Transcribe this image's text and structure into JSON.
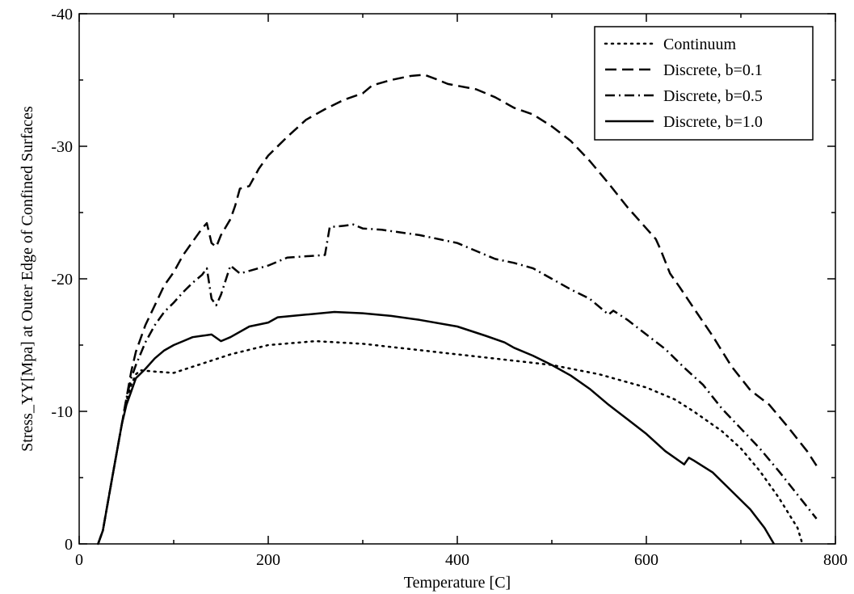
{
  "chart_data": {
    "type": "line",
    "xlabel": "Temperature [C]",
    "ylabel": "Stress_YY[Mpa] at Outer Edge of Confined Surfaces",
    "xlim": [
      0,
      800
    ],
    "ylim": [
      0,
      -40
    ],
    "y_axis_inverted": true,
    "x_ticks": [
      0,
      200,
      400,
      600,
      800
    ],
    "y_ticks": [
      0,
      -10,
      -20,
      -30,
      -40
    ],
    "x_tick_labels": [
      "0",
      "200",
      "400",
      "600",
      "800"
    ],
    "y_tick_labels": [
      "0",
      "-10",
      "-20",
      "-30",
      "-40"
    ],
    "grid": false,
    "legend_position": "top-right",
    "series": [
      {
        "name": "Continuum",
        "style": "dotted",
        "color": "#000000",
        "points": [
          [
            20,
            0
          ],
          [
            25,
            -1
          ],
          [
            30,
            -3
          ],
          [
            35,
            -5
          ],
          [
            40,
            -7
          ],
          [
            45,
            -9
          ],
          [
            50,
            -10.8
          ],
          [
            55,
            -12
          ],
          [
            60,
            -12.8
          ],
          [
            65,
            -13.1
          ],
          [
            80,
            -13
          ],
          [
            100,
            -12.9
          ],
          [
            130,
            -13.6
          ],
          [
            160,
            -14.3
          ],
          [
            200,
            -15
          ],
          [
            250,
            -15.3
          ],
          [
            300,
            -15.1
          ],
          [
            350,
            -14.7
          ],
          [
            400,
            -14.3
          ],
          [
            450,
            -13.9
          ],
          [
            500,
            -13.5
          ],
          [
            550,
            -12.8
          ],
          [
            600,
            -11.8
          ],
          [
            630,
            -10.9
          ],
          [
            650,
            -10
          ],
          [
            680,
            -8.5
          ],
          [
            700,
            -7.2
          ],
          [
            720,
            -5.5
          ],
          [
            740,
            -3.5
          ],
          [
            760,
            -1.2
          ],
          [
            765,
            0
          ]
        ]
      },
      {
        "name": "Discrete, b=0.1",
        "style": "dashed",
        "color": "#000000",
        "points": [
          [
            20,
            0
          ],
          [
            25,
            -1
          ],
          [
            30,
            -3
          ],
          [
            35,
            -5
          ],
          [
            40,
            -7
          ],
          [
            45,
            -9
          ],
          [
            50,
            -11
          ],
          [
            55,
            -13
          ],
          [
            60,
            -14.5
          ],
          [
            70,
            -16.5
          ],
          [
            80,
            -18
          ],
          [
            90,
            -19.5
          ],
          [
            100,
            -20.5
          ],
          [
            110,
            -21.8
          ],
          [
            120,
            -22.8
          ],
          [
            130,
            -23.8
          ],
          [
            135,
            -24.2
          ],
          [
            140,
            -22.7
          ],
          [
            145,
            -22.4
          ],
          [
            150,
            -23.3
          ],
          [
            160,
            -24.5
          ],
          [
            165,
            -25.5
          ],
          [
            170,
            -26.8
          ],
          [
            180,
            -27
          ],
          [
            190,
            -28.3
          ],
          [
            200,
            -29.3
          ],
          [
            220,
            -30.7
          ],
          [
            240,
            -32
          ],
          [
            260,
            -32.8
          ],
          [
            280,
            -33.5
          ],
          [
            300,
            -34
          ],
          [
            310,
            -34.6
          ],
          [
            330,
            -35
          ],
          [
            350,
            -35.3
          ],
          [
            365,
            -35.4
          ],
          [
            380,
            -35
          ],
          [
            390,
            -34.7
          ],
          [
            420,
            -34.3
          ],
          [
            440,
            -33.7
          ],
          [
            460,
            -32.9
          ],
          [
            480,
            -32.4
          ],
          [
            500,
            -31.5
          ],
          [
            520,
            -30.4
          ],
          [
            540,
            -28.9
          ],
          [
            560,
            -27.2
          ],
          [
            580,
            -25.4
          ],
          [
            600,
            -23.8
          ],
          [
            610,
            -23
          ],
          [
            615,
            -22.2
          ],
          [
            625,
            -20.4
          ],
          [
            635,
            -19.4
          ],
          [
            650,
            -17.8
          ],
          [
            670,
            -15.7
          ],
          [
            690,
            -13.4
          ],
          [
            710,
            -11.6
          ],
          [
            730,
            -10.5
          ],
          [
            750,
            -8.8
          ],
          [
            770,
            -7
          ],
          [
            780,
            -5.9
          ]
        ]
      },
      {
        "name": "Discrete, b=0.5",
        "style": "dashdot",
        "color": "#000000",
        "points": [
          [
            20,
            0
          ],
          [
            25,
            -1
          ],
          [
            30,
            -3
          ],
          [
            35,
            -5
          ],
          [
            40,
            -7
          ],
          [
            45,
            -9
          ],
          [
            50,
            -11
          ],
          [
            55,
            -12.5
          ],
          [
            60,
            -13.5
          ],
          [
            70,
            -15.2
          ],
          [
            80,
            -16.5
          ],
          [
            90,
            -17.5
          ],
          [
            100,
            -18.2
          ],
          [
            110,
            -19
          ],
          [
            120,
            -19.7
          ],
          [
            130,
            -20.3
          ],
          [
            135,
            -20.8
          ],
          [
            140,
            -18.5
          ],
          [
            145,
            -18
          ],
          [
            150,
            -18.8
          ],
          [
            160,
            -21
          ],
          [
            170,
            -20.4
          ],
          [
            180,
            -20.6
          ],
          [
            200,
            -21
          ],
          [
            220,
            -21.6
          ],
          [
            260,
            -21.8
          ],
          [
            265,
            -23.9
          ],
          [
            280,
            -24
          ],
          [
            290,
            -24.1
          ],
          [
            300,
            -23.8
          ],
          [
            320,
            -23.7
          ],
          [
            360,
            -23.3
          ],
          [
            400,
            -22.7
          ],
          [
            440,
            -21.5
          ],
          [
            460,
            -21.2
          ],
          [
            480,
            -20.8
          ],
          [
            500,
            -20
          ],
          [
            520,
            -19.2
          ],
          [
            540,
            -18.5
          ],
          [
            560,
            -17.3
          ],
          [
            565,
            -17.6
          ],
          [
            580,
            -16.9
          ],
          [
            600,
            -15.8
          ],
          [
            620,
            -14.7
          ],
          [
            640,
            -13.3
          ],
          [
            660,
            -12
          ],
          [
            680,
            -10.2
          ],
          [
            700,
            -8.7
          ],
          [
            720,
            -7.2
          ],
          [
            740,
            -5.5
          ],
          [
            760,
            -3.7
          ],
          [
            780,
            -1.9
          ]
        ]
      },
      {
        "name": "Discrete, b=1.0",
        "style": "solid",
        "color": "#000000",
        "points": [
          [
            20,
            0
          ],
          [
            25,
            -1
          ],
          [
            30,
            -3
          ],
          [
            35,
            -5
          ],
          [
            40,
            -7
          ],
          [
            45,
            -9
          ],
          [
            50,
            -10.5
          ],
          [
            55,
            -11.5
          ],
          [
            60,
            -12.5
          ],
          [
            70,
            -13.2
          ],
          [
            80,
            -14
          ],
          [
            90,
            -14.6
          ],
          [
            100,
            -15
          ],
          [
            110,
            -15.3
          ],
          [
            120,
            -15.6
          ],
          [
            130,
            -15.7
          ],
          [
            140,
            -15.8
          ],
          [
            150,
            -15.3
          ],
          [
            160,
            -15.6
          ],
          [
            180,
            -16.4
          ],
          [
            200,
            -16.7
          ],
          [
            210,
            -17.1
          ],
          [
            240,
            -17.3
          ],
          [
            270,
            -17.5
          ],
          [
            300,
            -17.4
          ],
          [
            330,
            -17.2
          ],
          [
            360,
            -16.9
          ],
          [
            400,
            -16.4
          ],
          [
            430,
            -15.7
          ],
          [
            450,
            -15.2
          ],
          [
            460,
            -14.8
          ],
          [
            480,
            -14.2
          ],
          [
            500,
            -13.5
          ],
          [
            520,
            -12.7
          ],
          [
            540,
            -11.7
          ],
          [
            560,
            -10.5
          ],
          [
            580,
            -9.4
          ],
          [
            600,
            -8.3
          ],
          [
            620,
            -7
          ],
          [
            640,
            -6
          ],
          [
            645,
            -6.5
          ],
          [
            650,
            -6.3
          ],
          [
            670,
            -5.4
          ],
          [
            690,
            -4
          ],
          [
            710,
            -2.6
          ],
          [
            725,
            -1.2
          ],
          [
            735,
            0
          ]
        ]
      }
    ]
  }
}
